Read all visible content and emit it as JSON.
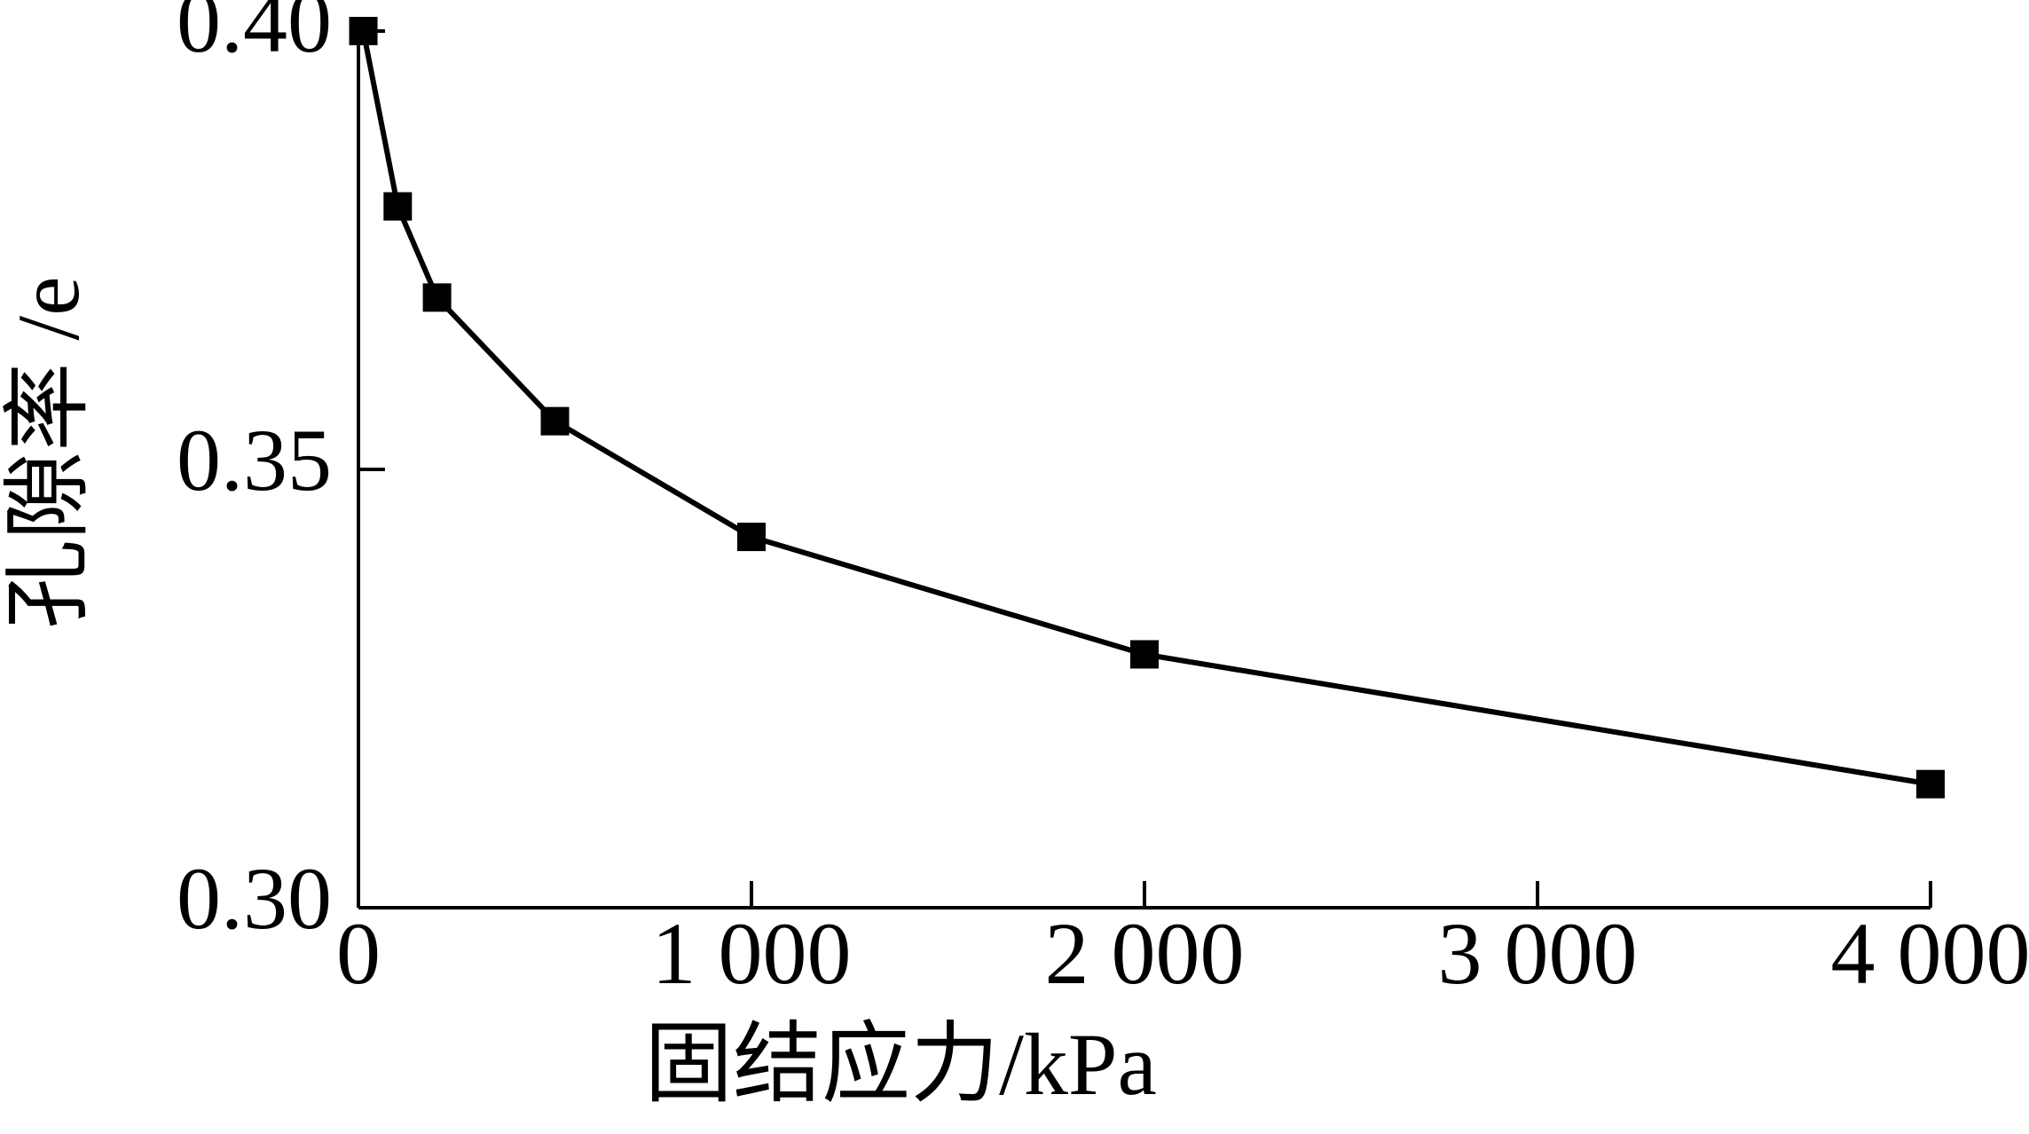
{
  "chart_data": {
    "type": "line",
    "x_label": "固结应力/kPa",
    "y_label": "孔隙率 /e",
    "x": [
      12.5,
      100,
      200,
      500,
      1000,
      2000,
      4000
    ],
    "series": [
      {
        "color": "#000000",
        "values": [
          0.4,
          0.38,
          0.3696,
          0.3555,
          0.3423,
          0.3289,
          0.3141
        ]
      }
    ],
    "xlim": [
      0,
      4000
    ],
    "xticks": [
      0,
      {
        "value": 1000,
        "label": "1 000"
      },
      {
        "value": 2000,
        "label": "2 000"
      },
      {
        "value": 3000,
        "label": "3 000"
      },
      {
        "value": 4000,
        "label": "4 000"
      }
    ],
    "ylim": [
      0.3,
      0.4
    ],
    "yticks": [
      {
        "value": 0.3,
        "label": "0.30"
      },
      {
        "value": 0.35,
        "label": "0.35"
      },
      {
        "value": 0.4,
        "label": "0.40"
      }
    ],
    "grid": false
  }
}
